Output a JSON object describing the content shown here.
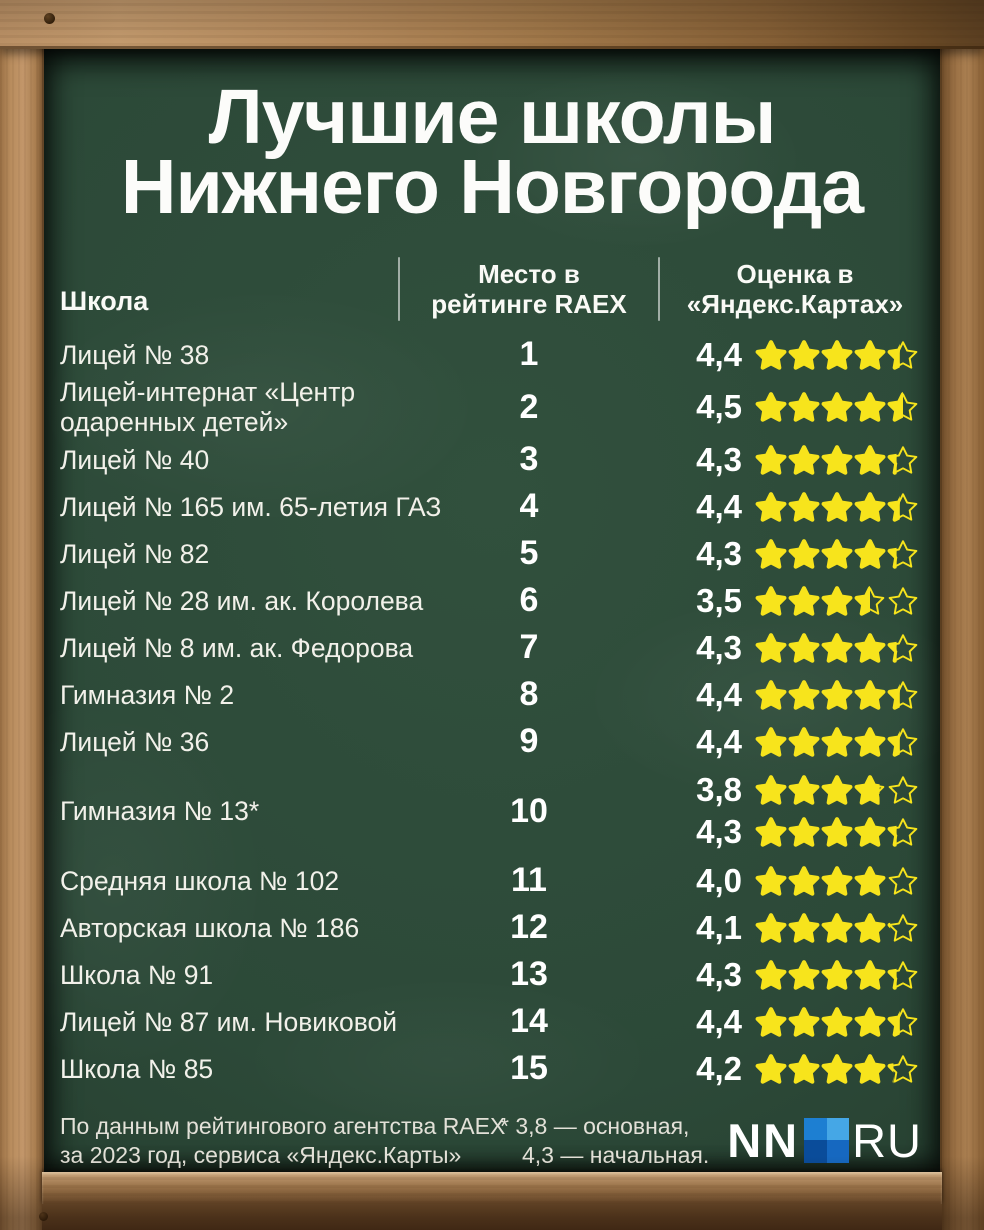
{
  "title": {
    "line1": "Лучшие школы",
    "line2": "Нижнего Новгорода"
  },
  "table": {
    "headers": {
      "school": "Школа",
      "rank_line1": "Место в",
      "rank_line2": "рейтинге RAEX",
      "rating_line1": "Оценка в",
      "rating_line2": "«Яндекс.Картах»"
    },
    "rows": [
      {
        "school": "Лицей № 38",
        "rank": "1",
        "ratings": [
          {
            "value": "4,4",
            "stars": 4.4
          }
        ]
      },
      {
        "school": "Лицей-интернат «Центр одаренных детей»",
        "rank": "2",
        "ratings": [
          {
            "value": "4,5",
            "stars": 4.5
          }
        ]
      },
      {
        "school": "Лицей № 40",
        "rank": "3",
        "ratings": [
          {
            "value": "4,3",
            "stars": 4.3
          }
        ]
      },
      {
        "school": "Лицей № 165 им. 65-летия ГАЗ",
        "rank": "4",
        "ratings": [
          {
            "value": "4,4",
            "stars": 4.4
          }
        ]
      },
      {
        "school": "Лицей № 82",
        "rank": "5",
        "ratings": [
          {
            "value": "4,3",
            "stars": 4.3
          }
        ]
      },
      {
        "school": "Лицей № 28 им. ак. Королева",
        "rank": "6",
        "ratings": [
          {
            "value": "3,5",
            "stars": 3.5
          }
        ]
      },
      {
        "school": "Лицей № 8 им. ак. Федорова",
        "rank": "7",
        "ratings": [
          {
            "value": "4,3",
            "stars": 4.3
          }
        ]
      },
      {
        "school": "Гимназия № 2",
        "rank": "8",
        "ratings": [
          {
            "value": "4,4",
            "stars": 4.4
          }
        ]
      },
      {
        "school": "Лицей № 36",
        "rank": "9",
        "ratings": [
          {
            "value": "4,4",
            "stars": 4.4
          }
        ]
      },
      {
        "school": "Гимназия № 13*",
        "rank": "10",
        "ratings": [
          {
            "value": "3,8",
            "stars": 3.8
          },
          {
            "value": "4,3",
            "stars": 4.3
          }
        ]
      },
      {
        "school": "Средняя школа № 102",
        "rank": "11",
        "ratings": [
          {
            "value": "4,0",
            "stars": 4.0
          }
        ]
      },
      {
        "school": "Авторская школа № 186",
        "rank": "12",
        "ratings": [
          {
            "value": "4,1",
            "stars": 4.1
          }
        ]
      },
      {
        "school": "Школа № 91",
        "rank": "13",
        "ratings": [
          {
            "value": "4,3",
            "stars": 4.3
          }
        ]
      },
      {
        "school": "Лицей № 87 им. Новиковой",
        "rank": "14",
        "ratings": [
          {
            "value": "4,4",
            "stars": 4.4
          }
        ]
      },
      {
        "school": "Школа № 85",
        "rank": "15",
        "ratings": [
          {
            "value": "4,2",
            "stars": 4.2
          }
        ]
      }
    ]
  },
  "footer": {
    "source_line1": "По данным рейтингового агентства RAEX",
    "source_line2": "за 2023 год, сервиса «Яндекс.Карты»",
    "note_line1": "* 3,8 — основная,",
    "note_line2": "4,3 — начальная.",
    "logo": {
      "left": "NN",
      "right": "RU"
    }
  },
  "colors": {
    "board_green": "#2c4938",
    "star_yellow": "#f7e41c",
    "wood_light": "#c2966a",
    "wood_dark": "#6a4a26",
    "logo_blue_tl": "#1d7fd2",
    "logo_blue_tr": "#45a7e6",
    "logo_blue_bl": "#0a4c9a",
    "logo_blue_br": "#1668c0"
  },
  "chart_data": {
    "type": "table",
    "title": "Лучшие школы Нижнего Новгорода",
    "columns": [
      "Школа",
      "Место в рейтинге RAEX",
      "Оценка в «Яндекс.Картах»"
    ],
    "rows": [
      [
        "Лицей № 38",
        1,
        4.4
      ],
      [
        "Лицей-интернат «Центр одаренных детей»",
        2,
        4.5
      ],
      [
        "Лицей № 40",
        3,
        4.3
      ],
      [
        "Лицей № 165 им. 65-летия ГАЗ",
        4,
        4.4
      ],
      [
        "Лицей № 82",
        5,
        4.3
      ],
      [
        "Лицей № 28 им. ак. Королева",
        6,
        3.5
      ],
      [
        "Лицей № 8 им. ак. Федорова",
        7,
        4.3
      ],
      [
        "Гимназия № 2",
        8,
        4.4
      ],
      [
        "Лицей № 36",
        9,
        4.4
      ],
      [
        "Гимназия № 13*",
        10,
        [
          3.8,
          4.3
        ]
      ],
      [
        "Средняя школа № 102",
        11,
        4.0
      ],
      [
        "Авторская школа № 186",
        12,
        4.1
      ],
      [
        "Школа № 91",
        13,
        4.3
      ],
      [
        "Лицей № 87 им. Новиковой",
        14,
        4.4
      ],
      [
        "Школа № 85",
        15,
        4.2
      ]
    ],
    "rating_scale": [
      0,
      5
    ],
    "notes": "* 3,8 — основная, 4,3 — начальная.",
    "source": "По данным рейтингового агентства RAEX за 2023 год, сервиса «Яндекс.Карты»"
  }
}
